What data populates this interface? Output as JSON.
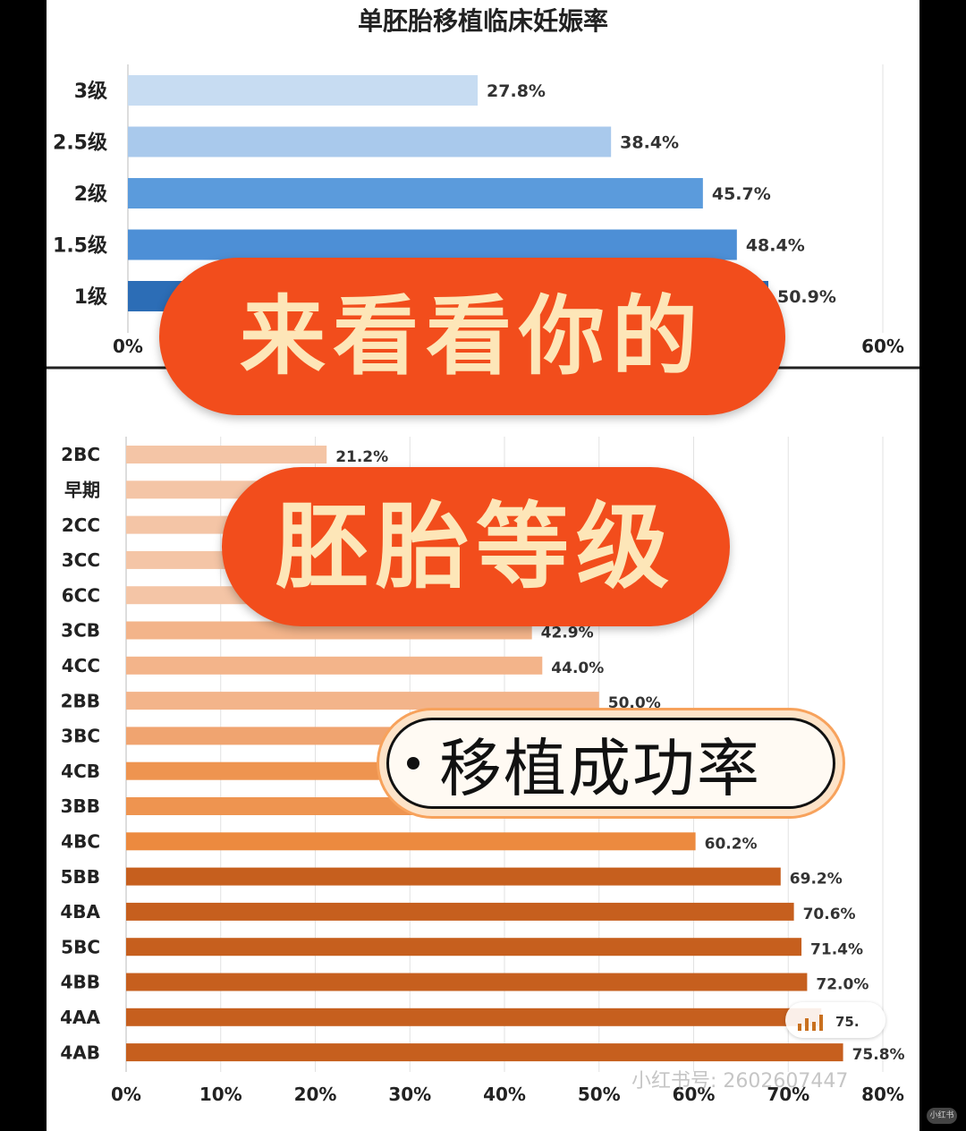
{
  "chart_data": [
    {
      "type": "bar",
      "orientation": "horizontal",
      "title": "单胚胎移植临床妊娠率",
      "categories": [
        "3级",
        "2.5级",
        "2级",
        "1.5级",
        "1级"
      ],
      "values": [
        27.8,
        38.4,
        45.7,
        48.4,
        50.9
      ],
      "value_labels": [
        "27.8%",
        "38.4%",
        "45.7%",
        "48.4%",
        "50.9%"
      ],
      "xlim": [
        0,
        60
      ],
      "ticks": [
        {
          "value": 0,
          "label": "0%"
        },
        {
          "value": 60,
          "label": "60%"
        }
      ],
      "grid": true,
      "colors": [
        "#c7dcf2",
        "#a9c9ec",
        "#5b9bdc",
        "#4d8fd6",
        "#2c6db6"
      ]
    },
    {
      "type": "bar",
      "orientation": "horizontal",
      "title": "",
      "categories": [
        "2BC",
        "早期",
        "2CC",
        "3CC",
        "6CC",
        "3CB",
        "4CC",
        "2BB",
        "3BC",
        "4CB",
        "3BB",
        "4BC",
        "5BB",
        "4BA",
        "5BC",
        "4BB",
        "4AA",
        "4AB"
      ],
      "values": [
        21.2,
        23.5,
        26.0,
        29.0,
        31.0,
        42.9,
        44.0,
        50.0,
        51.0,
        53.0,
        55.0,
        60.2,
        69.2,
        70.6,
        71.4,
        72.0,
        73.5,
        75.8
      ],
      "value_labels": [
        "21.2%",
        "",
        "",
        "",
        "",
        "42.9%",
        "44.0%",
        "50.0%",
        "",
        "",
        "",
        "60.2%",
        "69.2%",
        "70.6%",
        "71.4%",
        "72.0%",
        "",
        "75.8%"
      ],
      "xlim": [
        0,
        80
      ],
      "ticks": [
        {
          "value": 0,
          "label": "0%"
        },
        {
          "value": 10,
          "label": "10%"
        },
        {
          "value": 20,
          "label": "20%"
        },
        {
          "value": 30,
          "label": "30%"
        },
        {
          "value": 40,
          "label": "40%"
        },
        {
          "value": 50,
          "label": "50%"
        },
        {
          "value": 60,
          "label": "60%"
        },
        {
          "value": 70,
          "label": "70%"
        },
        {
          "value": 80,
          "label": "80%"
        }
      ],
      "grid": true,
      "colors": [
        "#f4c5a6",
        "#f4c5a6",
        "#f4c5a6",
        "#f4c5a6",
        "#f4c5a6",
        "#f3b48a",
        "#f3b48a",
        "#f3b48a",
        "#f0a470",
        "#ee9450",
        "#ee9450",
        "#ec8a3f",
        "#c65f1e",
        "#c65f1e",
        "#c65f1e",
        "#c65f1e",
        "#c65f1e",
        "#c65f1e"
      ]
    }
  ],
  "overlay": {
    "banner_line1": "来看看你的",
    "banner_line2": "胚胎等级",
    "badge_text": "移植成功率"
  },
  "watermark": {
    "partial_value": "75.",
    "id_text": "小红书号: 2602607447"
  },
  "corner_badge": "小红书"
}
